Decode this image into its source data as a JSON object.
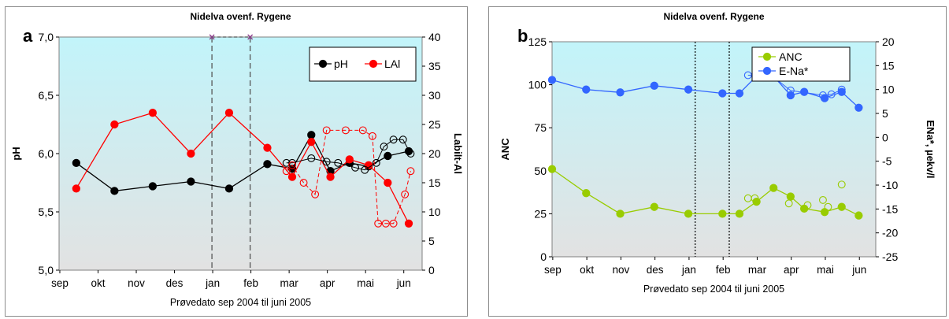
{
  "chart_data": [
    {
      "type": "line",
      "panel_label": "a",
      "title": "Nidelva ovenf. Rygene",
      "xlabel": "Prøvedato sep 2004 til juni 2005",
      "ylabel": "pH",
      "y2label": "Labilt-Al",
      "x_tick_labels": [
        "sep",
        "okt",
        "nov",
        "des",
        "jan",
        "feb",
        "mar",
        "apr",
        "mai",
        "jun"
      ],
      "xlim": [
        0,
        9.5
      ],
      "ylim": [
        5.0,
        7.0
      ],
      "y_ticks": [
        "5,0",
        "5,5",
        "6,0",
        "6,5",
        "7,0"
      ],
      "y2lim": [
        0,
        40
      ],
      "y2_ticks": [
        "0",
        "5",
        "10",
        "15",
        "20",
        "25",
        "30",
        "35",
        "40"
      ],
      "legend": {
        "position": "top-right",
        "entries": [
          "pH",
          "LAl"
        ]
      },
      "colors": {
        "pH": "#000000",
        "LAl": "#ff0000",
        "plot_bg_top": "#c2f4fa",
        "plot_bg_bottom": "#e2e2e2"
      },
      "series": [
        {
          "name": "pH",
          "axis": "left",
          "style": "solid-filled",
          "x": [
            0.45,
            1.45,
            2.45,
            3.45,
            4.45,
            5.45,
            6.1,
            6.6,
            7.1,
            7.6,
            8.1,
            8.6,
            9.15
          ],
          "values": [
            5.92,
            5.68,
            5.72,
            5.76,
            5.7,
            5.91,
            5.87,
            6.16,
            5.85,
            5.92,
            5.89,
            5.98,
            6.02
          ]
        },
        {
          "name": "LAl",
          "axis": "right",
          "style": "solid-filled",
          "x": [
            0.45,
            1.45,
            2.45,
            3.45,
            4.45,
            5.45,
            6.1,
            6.6,
            7.1,
            7.6,
            8.1,
            8.6,
            9.15
          ],
          "values": [
            14,
            25,
            27,
            20,
            27,
            21,
            16,
            22,
            16,
            19,
            18,
            15,
            8
          ]
        },
        {
          "name": "",
          "axis": "left",
          "style": "solid-open",
          "color": "#000000",
          "x": [
            5.95,
            6.1,
            6.6,
            7.0,
            7.3,
            7.75,
            8.0,
            8.3,
            8.5,
            8.75,
            9.0,
            9.2
          ],
          "values": [
            5.92,
            5.92,
            5.96,
            5.93,
            5.92,
            5.88,
            5.86,
            5.92,
            6.06,
            6.12,
            6.12,
            6.0
          ]
        },
        {
          "name": "",
          "axis": "right",
          "style": "dashed-open",
          "color": "#ff0000",
          "x": [
            5.95,
            6.1,
            6.4,
            6.7,
            7.0,
            7.5,
            7.95,
            8.2,
            8.35,
            8.55,
            8.75,
            9.05,
            9.2
          ],
          "values": [
            17,
            18,
            15,
            13,
            24,
            24,
            24,
            23,
            8,
            8,
            8,
            13,
            17
          ]
        }
      ],
      "markers": [
        {
          "label": "jan",
          "x": 4.0
        },
        {
          "label": "feb",
          "x": 5.0
        }
      ]
    },
    {
      "type": "line",
      "panel_label": "b",
      "title": "Nidelva ovenf. Rygene",
      "xlabel": "Prøvedato sep 2004 til juni 2005",
      "ylabel": "ANC",
      "y2label": "ENa*, µekv/l",
      "x_tick_labels": [
        "sep",
        "okt",
        "nov",
        "des",
        "jan",
        "feb",
        "mar",
        "apr",
        "mai",
        "jun"
      ],
      "xlim": [
        0,
        9.5
      ],
      "ylim": [
        0,
        125
      ],
      "y_ticks": [
        "0",
        "25",
        "50",
        "75",
        "100",
        "125"
      ],
      "y2lim": [
        -25,
        20
      ],
      "y2_ticks": [
        "-25",
        "-20",
        "-15",
        "-10",
        "-5",
        "0",
        "5",
        "10",
        "15",
        "20"
      ],
      "legend": {
        "position": "top-right",
        "entries": [
          "ANC",
          "E-Na*"
        ]
      },
      "colors": {
        "ANC": "#99cc00",
        "E-Na*": "#3366ff",
        "plot_bg_top": "#c2f4fa",
        "plot_bg_bottom": "#e2e2e2"
      },
      "series": [
        {
          "name": "ANC",
          "axis": "left",
          "style": "solid-filled",
          "x": [
            0.0,
            1.0,
            2.0,
            3.0,
            4.0,
            5.0,
            5.5,
            6.0,
            6.5,
            7.0,
            7.4,
            8.0,
            8.5,
            9.0
          ],
          "values": [
            51,
            37,
            25,
            29,
            25,
            25,
            25,
            32,
            40,
            35,
            28,
            26,
            29,
            24
          ]
        },
        {
          "name": "E-Na*",
          "axis": "right",
          "style": "solid-filled",
          "x": [
            0.0,
            1.0,
            2.0,
            3.0,
            4.0,
            5.0,
            5.5,
            6.0,
            6.5,
            7.0,
            7.4,
            8.0,
            8.5,
            9.0
          ],
          "values": [
            12.0,
            10.0,
            9.4,
            10.8,
            10.0,
            9.2,
            9.2,
            12.8,
            12.8,
            8.8,
            9.5,
            8.2,
            9.5,
            6.2
          ]
        },
        {
          "name": "",
          "axis": "left",
          "style": "open",
          "color": "#99cc00",
          "x": [
            5.75,
            5.95,
            6.95,
            7.5,
            7.95,
            8.1,
            8.5
          ],
          "values": [
            34,
            34,
            31,
            30,
            33,
            29,
            42
          ]
        },
        {
          "name": "",
          "axis": "right",
          "style": "solid-open",
          "color": "#3366ff",
          "x": [
            5.75,
            5.95,
            6.5,
            7.0,
            7.95,
            8.2,
            8.5
          ],
          "values": [
            13.0,
            13.0,
            12.6,
            9.8,
            8.8,
            9.0,
            10.0
          ]
        }
      ],
      "markers": [
        {
          "label": "jan",
          "x": 4.2
        },
        {
          "label": "feb",
          "x": 5.2
        }
      ]
    }
  ]
}
